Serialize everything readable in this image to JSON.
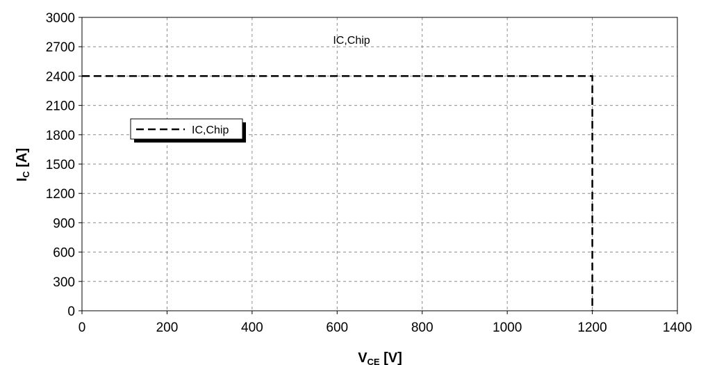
{
  "chart_data": {
    "type": "line",
    "x": [
      0,
      1200,
      1200
    ],
    "series": [
      {
        "name": "IC,Chip",
        "values": [
          2400,
          2400,
          0
        ],
        "color": "#000000",
        "style": "dashed"
      }
    ],
    "xlabel": {
      "main": "V",
      "sub": "CE",
      "unit": " [V]"
    },
    "ylabel": {
      "main": "I",
      "sub": "C",
      "unit": " [A]"
    },
    "xlim": [
      0,
      1400
    ],
    "ylim": [
      0,
      3000
    ],
    "x_ticks": [
      0,
      200,
      400,
      600,
      800,
      1000,
      1200,
      1400
    ],
    "y_ticks": [
      0,
      300,
      600,
      900,
      1200,
      1500,
      1800,
      2100,
      2400,
      2700,
      3000
    ],
    "x_tick_labels": [
      "0",
      "200",
      "400",
      "600",
      "800",
      "1000",
      "1200",
      "1400"
    ],
    "y_tick_labels": [
      "0",
      "300",
      "600",
      "900",
      "1200",
      "1500",
      "1800",
      "2100",
      "2400",
      "2700",
      "3000"
    ],
    "annotation": "IC,Chip",
    "legend": {
      "label": "IC,Chip",
      "placement": "left"
    },
    "grid": true
  }
}
